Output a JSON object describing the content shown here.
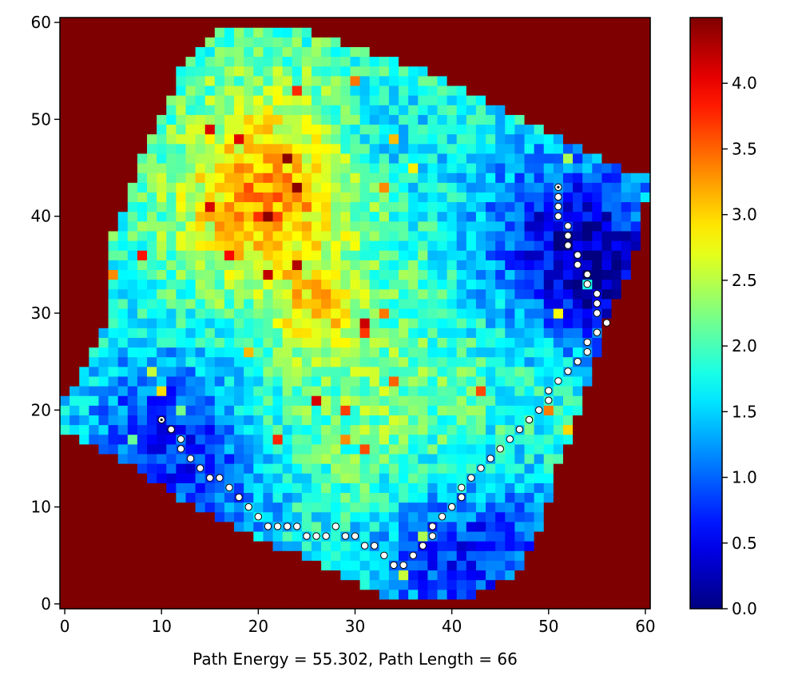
{
  "chart_data": {
    "type": "heatmap",
    "title": "",
    "xlabel": "Path Energy = 55.302, Path Length = 66",
    "ylabel": "",
    "grid_size": 61,
    "xlim": [
      -0.5,
      60.5
    ],
    "ylim": [
      -0.5,
      60.5
    ],
    "x_ticks": [
      0,
      10,
      20,
      30,
      40,
      50,
      60
    ],
    "y_ticks": [
      0,
      10,
      20,
      30,
      40,
      50,
      60
    ],
    "colormap": "jet",
    "colorbar": {
      "min": 0.0,
      "max": 4.5,
      "ticks": [
        "0.0",
        "0.5",
        "1.0",
        "1.5",
        "2.0",
        "2.5",
        "3.0",
        "3.5",
        "4.0"
      ]
    },
    "outside_region_color": "#7f0000",
    "outside_region_value": 4.5,
    "region_outline": [
      [
        0,
        21
      ],
      [
        4,
        28
      ],
      [
        5,
        38
      ],
      [
        8,
        46
      ],
      [
        12,
        55
      ],
      [
        17,
        60
      ],
      [
        26,
        59
      ],
      [
        35,
        56
      ],
      [
        44,
        52
      ],
      [
        52,
        48
      ],
      [
        58,
        45
      ],
      [
        60.5,
        44
      ],
      [
        59,
        36
      ],
      [
        56,
        29
      ],
      [
        53,
        19
      ],
      [
        51,
        14
      ],
      [
        49,
        7
      ],
      [
        47,
        3
      ],
      [
        40,
        0
      ],
      [
        33,
        1
      ],
      [
        22,
        6
      ],
      [
        12,
        11
      ],
      [
        6,
        15
      ],
      [
        2,
        17
      ],
      [
        0,
        18
      ]
    ],
    "energy_features": [
      {
        "x": 52,
        "y": 38,
        "radius": 7,
        "amount": -1.3
      },
      {
        "x": 57,
        "y": 32,
        "radius": 5,
        "amount": -0.9
      },
      {
        "x": 10,
        "y": 18,
        "radius": 6,
        "amount": -1.1
      },
      {
        "x": 17,
        "y": 10,
        "radius": 5,
        "amount": -0.6
      },
      {
        "x": 38,
        "y": 4,
        "radius": 6,
        "amount": -0.8
      },
      {
        "x": 46,
        "y": 6,
        "radius": 6,
        "amount": -0.7
      },
      {
        "x": 33,
        "y": 48,
        "radius": 5,
        "amount": -0.5
      },
      {
        "x": 22,
        "y": 44,
        "radius": 8,
        "amount": 1.0
      },
      {
        "x": 20,
        "y": 40,
        "radius": 5,
        "amount": 0.6
      },
      {
        "x": 26,
        "y": 30,
        "radius": 3,
        "amount": 0.8
      },
      {
        "x": 32,
        "y": 20,
        "radius": 8,
        "amount": 0.4
      }
    ],
    "energy_base": 1.85,
    "energy_noise": 0.45,
    "series": [
      {
        "points": [
          [
            10,
            19
          ],
          [
            11,
            18
          ],
          [
            12,
            17
          ],
          [
            12,
            16
          ],
          [
            13,
            15
          ],
          [
            14,
            14
          ],
          [
            15,
            13
          ],
          [
            16,
            13
          ],
          [
            17,
            12
          ],
          [
            18,
            11
          ],
          [
            19,
            10
          ],
          [
            20,
            9
          ],
          [
            21,
            8
          ],
          [
            22,
            8
          ],
          [
            23,
            8
          ],
          [
            24,
            8
          ],
          [
            25,
            7
          ],
          [
            26,
            7
          ],
          [
            27,
            7
          ],
          [
            28,
            8
          ],
          [
            29,
            7
          ],
          [
            30,
            7
          ],
          [
            31,
            6
          ],
          [
            32,
            6
          ],
          [
            33,
            5
          ],
          [
            34,
            4
          ],
          [
            35,
            4
          ],
          [
            36,
            5
          ],
          [
            37,
            6
          ],
          [
            38,
            7
          ],
          [
            38,
            8
          ],
          [
            39,
            9
          ],
          [
            40,
            10
          ],
          [
            41,
            11
          ],
          [
            41,
            12
          ],
          [
            42,
            13
          ],
          [
            43,
            14
          ],
          [
            44,
            15
          ],
          [
            45,
            16
          ],
          [
            46,
            17
          ],
          [
            47,
            18
          ],
          [
            48,
            19
          ],
          [
            49,
            20
          ],
          [
            50,
            21
          ],
          [
            50,
            22
          ],
          [
            51,
            23
          ],
          [
            52,
            24
          ],
          [
            53,
            25
          ],
          [
            54,
            26
          ],
          [
            54,
            27
          ],
          [
            55,
            28
          ],
          [
            56,
            29
          ],
          [
            55,
            30
          ],
          [
            55,
            31
          ],
          [
            55,
            32
          ],
          [
            54,
            33
          ],
          [
            54,
            34
          ],
          [
            53,
            35
          ],
          [
            53,
            36
          ],
          [
            52,
            37
          ],
          [
            52,
            38
          ],
          [
            52,
            39
          ],
          [
            51,
            40
          ],
          [
            51,
            41
          ],
          [
            51,
            42
          ],
          [
            51,
            43
          ]
        ],
        "marker_color": "#ffffff",
        "edge_color": "#000000",
        "endpoints": [
          [
            10,
            19
          ],
          [
            51,
            43
          ]
        ]
      }
    ]
  }
}
